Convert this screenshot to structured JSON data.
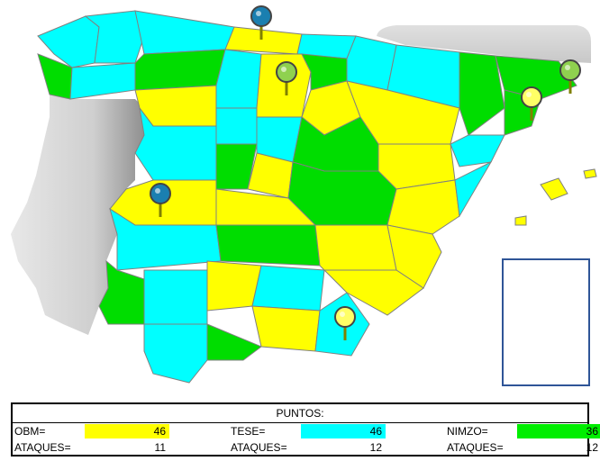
{
  "map": {
    "colors": {
      "yellow": "#ffff00",
      "cyan": "#00ffff",
      "green": "#00dd00",
      "border": "#808080",
      "neighbor": "#bdbdbd"
    },
    "pins": [
      {
        "name": "pin-cantabria",
        "color": "#1a7fb0"
      },
      {
        "name": "pin-burgos",
        "color": "#8fd14f"
      },
      {
        "name": "pin-girona",
        "color": "#8fd14f"
      },
      {
        "name": "pin-barcelona",
        "color": "#ffff66"
      },
      {
        "name": "pin-caceres",
        "color": "#1a7fb0"
      },
      {
        "name": "pin-almeria",
        "color": "#ffff66"
      }
    ]
  },
  "scoreboard": {
    "title": "PUNTOS:",
    "players": [
      {
        "name_label": "OBM=",
        "points": "46",
        "ataques_label": "ATAQUES=",
        "ataques": "11",
        "color": "#ffff00"
      },
      {
        "name_label": "TESE=",
        "points": "46",
        "ataques_label": "ATAQUES=",
        "ataques": "12",
        "color": "#00ffff"
      },
      {
        "name_label": "NIMZO=",
        "points": "36",
        "ataques_label": "ATAQUES=",
        "ataques": "12",
        "color": "#00ee00"
      }
    ]
  }
}
